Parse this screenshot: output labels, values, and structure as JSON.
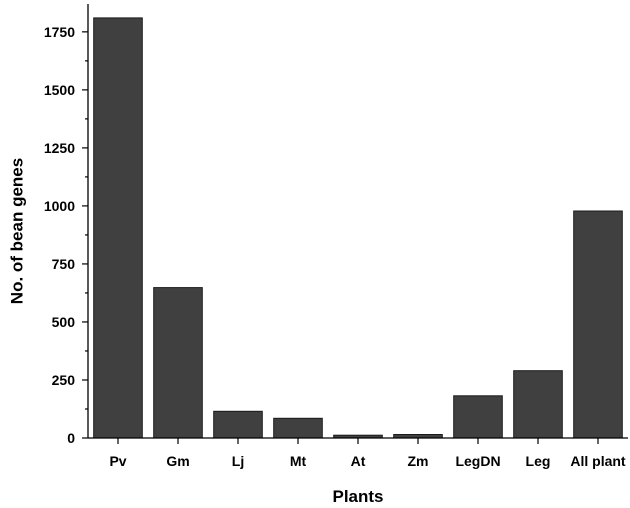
{
  "chart_data": {
    "type": "bar",
    "title": "",
    "xlabel": "Plants",
    "ylabel": "No. of bean genes",
    "categories": [
      "Pv",
      "Gm",
      "Lj",
      "Mt",
      "At",
      "Zm",
      "LegDN",
      "Leg",
      "All plant"
    ],
    "values": [
      1810,
      648,
      115,
      85,
      12,
      15,
      182,
      290,
      978
    ],
    "ylim": [
      0,
      1870
    ],
    "yticks": [
      0,
      250,
      500,
      750,
      1000,
      1250,
      1500,
      1750
    ],
    "ytick_labels": [
      "0",
      "250",
      "500",
      "750",
      "1000",
      "1250",
      "1500",
      "1750"
    ],
    "bar_color": "#404040",
    "grid": false,
    "legend": "none"
  }
}
